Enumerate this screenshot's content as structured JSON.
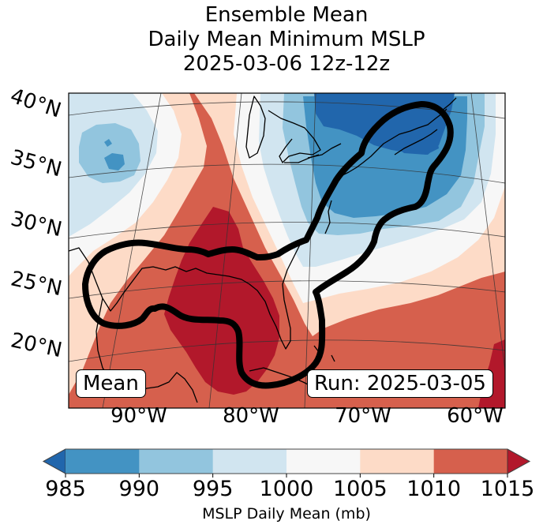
{
  "title": {
    "line1": "Ensemble Mean",
    "line2": "Daily Mean Minimum MSLP",
    "line3": "2025-03-06 12z-12z"
  },
  "map": {
    "projection": "lambert-conformal",
    "lat_labels": [
      "40°N",
      "35°N",
      "30°N",
      "25°N",
      "20°N"
    ],
    "lon_labels": [
      "90°W",
      "80°W",
      "70°W",
      "60°W"
    ],
    "mean_badge": "Mean",
    "run_badge": "Run: 2025-03-05",
    "features": [
      "coastlines",
      "lat-lon-gridlines",
      "outlined-region-contour"
    ]
  },
  "chart_data": {
    "type": "heatmap",
    "title": "Ensemble Mean Daily Mean Minimum MSLP 2025-03-06 12z-12z",
    "variable": "MSLP Daily Mean",
    "units": "mb",
    "levels": [
      985,
      990,
      995,
      1000,
      1005,
      1010,
      1015
    ],
    "extend": "both",
    "bins": [
      {
        "range": "<985",
        "color": "#2166ac"
      },
      {
        "range": "985-990",
        "color": "#4393c3"
      },
      {
        "range": "990-995",
        "color": "#92c5de"
      },
      {
        "range": "995-1000",
        "color": "#d1e5f0"
      },
      {
        "range": "1000-1005",
        "color": "#f7f7f7"
      },
      {
        "range": "1005-1010",
        "color": "#fddbc7"
      },
      {
        "range": "1010-1015",
        "color": "#d6604d"
      },
      {
        "range": ">1015",
        "color": "#b2182b"
      }
    ],
    "lat_range": [
      17,
      41
    ],
    "lon_range": [
      -97,
      -58
    ],
    "features": {
      "low_center_northeast": "below 985 mb near Gulf of Maine / Nova Scotia",
      "low_west": "985-990 mb near 36N 94W",
      "high_gulf": "above 1015 mb over Gulf of Mexico",
      "high_southeast_corner": "above 1015 mb near 20N 59W"
    }
  },
  "colorbar": {
    "tick_labels": [
      "985",
      "990",
      "995",
      "1000",
      "1005",
      "1010",
      "1015"
    ],
    "label": "MSLP Daily Mean (mb)"
  }
}
